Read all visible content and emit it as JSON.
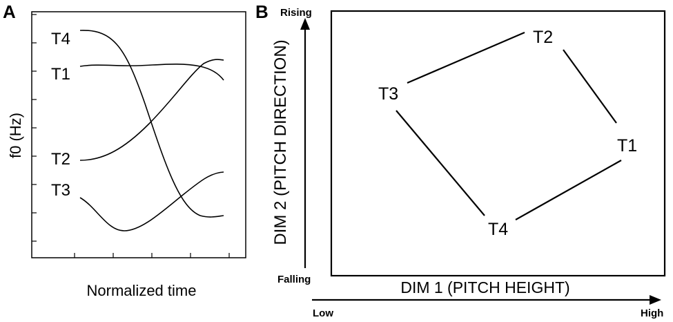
{
  "panel_a": {
    "letter": "A",
    "ylabel": "f0 (Hz)",
    "xlabel": "Normalized time",
    "tones": [
      {
        "label": "T4"
      },
      {
        "label": "T1"
      },
      {
        "label": "T2"
      },
      {
        "label": "T3"
      }
    ]
  },
  "panel_b": {
    "letter": "B",
    "xlabel": "DIM 1 (PITCH HEIGHT)",
    "ylabel": "DIM 2 (PITCH DIRECTION)",
    "x_low": "Low",
    "x_high": "High",
    "y_low": "Falling",
    "y_high": "Rising",
    "nodes": [
      {
        "label": "T2"
      },
      {
        "label": "T3"
      },
      {
        "label": "T1"
      },
      {
        "label": "T4"
      }
    ]
  }
}
